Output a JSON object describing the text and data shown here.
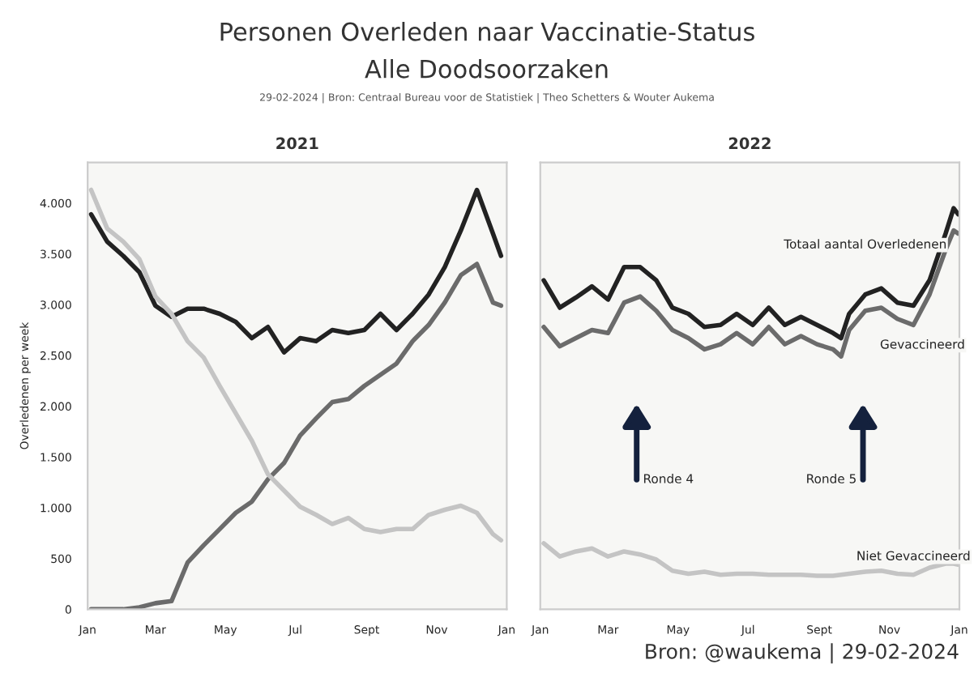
{
  "chart_data": [
    {
      "type": "line",
      "title": "Personen Overleden naar Vaccinatie-Status",
      "subtitle": "Alle Doodsoorzaken",
      "annotations": [
        "29-02-2024 | Bron: Centraal Bureau voor de Statistiek | Theo Schetters & Wouter Aukema",
        "2021"
      ],
      "ylabel": "Overledenen per week",
      "x": [
        "2021-01-04",
        "2021-01-18",
        "2021-02-01",
        "2021-02-15",
        "2021-03-01",
        "2021-03-15",
        "2021-03-29",
        "2021-04-12",
        "2021-04-26",
        "2021-05-10",
        "2021-05-24",
        "2021-06-07",
        "2021-06-21",
        "2021-07-05",
        "2021-07-19",
        "2021-08-02",
        "2021-08-16",
        "2021-08-30",
        "2021-09-13",
        "2021-09-27",
        "2021-10-11",
        "2021-10-25",
        "2021-11-08",
        "2021-11-22",
        "2021-12-06",
        "2021-12-20",
        "2021-12-27"
      ],
      "series": [
        {
          "color": "#222222",
          "values": [
            3890,
            3620,
            3480,
            3320,
            2990,
            2880,
            2960,
            2960,
            2910,
            2830,
            2670,
            2780,
            2530,
            2670,
            2640,
            2750,
            2720,
            2750,
            2910,
            2750,
            2910,
            3100,
            3370,
            3730,
            4130,
            3700,
            3480
          ]
        },
        {
          "color": "#6b6b6b",
          "values": [
            0,
            0,
            0,
            20,
            60,
            80,
            460,
            630,
            790,
            950,
            1060,
            1280,
            1440,
            1710,
            1880,
            2040,
            2070,
            2200,
            2310,
            2420,
            2640,
            2800,
            3020,
            3290,
            3400,
            3020,
            2990
          ]
        },
        {
          "color": "#c4c4c4",
          "values": [
            4130,
            3750,
            3620,
            3450,
            3080,
            2910,
            2640,
            2480,
            2200,
            1930,
            1660,
            1330,
            1170,
            1010,
            930,
            840,
            900,
            790,
            760,
            790,
            790,
            930,
            980,
            1020,
            950,
            740,
            680
          ]
        }
      ],
      "xlim": [
        "2021-01-01",
        "2022-01-01"
      ],
      "xticks": [
        {
          "value": "2021-01-01",
          "label": "Jan"
        },
        {
          "value": "2021-03-01",
          "label": "Mar"
        },
        {
          "value": "2021-05-01",
          "label": "May"
        },
        {
          "value": "2021-07-01",
          "label": "Jul"
        },
        {
          "value": "2021-09-01",
          "label": "Sept"
        },
        {
          "value": "2021-11-01",
          "label": "Nov"
        },
        {
          "value": "2022-01-01",
          "label": "Jan"
        }
      ],
      "ylim": [
        0,
        4400
      ],
      "yticks": [
        0,
        {
          "value": 500,
          "label": "500"
        },
        {
          "value": 1000,
          "label": "1.000"
        },
        {
          "value": 1500,
          "label": "1.500"
        },
        {
          "value": 2000,
          "label": "2.000"
        },
        {
          "value": 2500,
          "label": "2.500"
        },
        {
          "value": 3000,
          "label": "3.000"
        },
        {
          "value": 3500,
          "label": "3.500"
        },
        {
          "value": 4000,
          "label": "4.000"
        }
      ],
      "grid": false,
      "legend": false
    },
    {
      "type": "line",
      "title": "2022",
      "annotations": [
        "Ronde 4",
        "Ronde 5",
        "Bron: @waukema | 29-02-2024"
      ],
      "x": [
        "2022-01-04",
        "2022-01-18",
        "2022-02-01",
        "2022-02-15",
        "2022-03-01",
        "2022-03-15",
        "2022-03-29",
        "2022-04-12",
        "2022-04-26",
        "2022-05-10",
        "2022-05-24",
        "2022-06-07",
        "2022-06-21",
        "2022-07-05",
        "2022-07-19",
        "2022-08-02",
        "2022-08-16",
        "2022-08-30",
        "2022-09-13",
        "2022-09-20",
        "2022-09-27",
        "2022-10-11",
        "2022-10-25",
        "2022-11-08",
        "2022-11-22",
        "2022-12-06",
        "2022-12-20",
        "2022-12-27",
        "2022-12-31"
      ],
      "series": [
        {
          "name": "Totaal aantal Overledenen",
          "color": "#222222",
          "values": [
            3240,
            2970,
            3070,
            3180,
            3050,
            3370,
            3370,
            3240,
            2970,
            2910,
            2780,
            2800,
            2910,
            2800,
            2970,
            2800,
            2880,
            2800,
            2720,
            2670,
            2910,
            3100,
            3160,
            3020,
            2990,
            3240,
            3700,
            3950,
            3890
          ]
        },
        {
          "name": "Gevaccineerd",
          "color": "#6b6b6b",
          "values": [
            2780,
            2590,
            2670,
            2750,
            2720,
            3020,
            3080,
            2940,
            2750,
            2670,
            2560,
            2610,
            2720,
            2610,
            2780,
            2610,
            2690,
            2610,
            2560,
            2490,
            2750,
            2940,
            2970,
            2860,
            2800,
            3100,
            3540,
            3730,
            3700
          ]
        },
        {
          "name": "Niet Gevaccineerd",
          "color": "#c4c4c4",
          "values": [
            650,
            520,
            570,
            600,
            520,
            570,
            540,
            490,
            380,
            350,
            370,
            340,
            350,
            350,
            340,
            340,
            340,
            330,
            330,
            340,
            350,
            370,
            380,
            350,
            340,
            410,
            450,
            450,
            440
          ]
        }
      ],
      "xlim": [
        "2022-01-01",
        "2023-01-01"
      ],
      "xticks": [
        {
          "value": "2022-01-01",
          "label": "Jan"
        },
        {
          "value": "2022-03-01",
          "label": "Mar"
        },
        {
          "value": "2022-05-01",
          "label": "May"
        },
        {
          "value": "2022-07-01",
          "label": "Jul"
        },
        {
          "value": "2022-09-01",
          "label": "Sept"
        },
        {
          "value": "2022-11-01",
          "label": "Nov"
        },
        {
          "value": "2023-01-01",
          "label": "Jan"
        }
      ],
      "ylim": [
        0,
        4400
      ],
      "tick_labels": "x",
      "grid": false,
      "legend": false
    }
  ]
}
